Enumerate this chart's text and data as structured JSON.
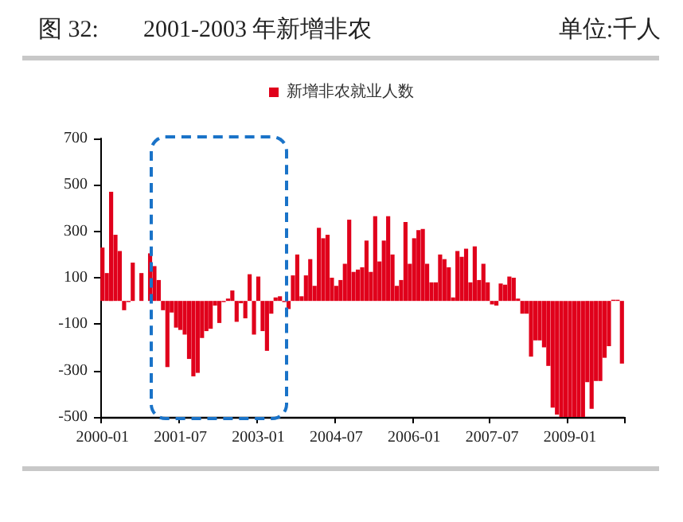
{
  "chart_data": {
    "type": "bar",
    "title": "2001-2003 年新增非农",
    "ylabel": "单位:千人",
    "annotations": [
      "图 32:"
    ],
    "categories": [
      "2000-01",
      null,
      null,
      null,
      null,
      null,
      null,
      null,
      null,
      null,
      null,
      null,
      null,
      null,
      null,
      null,
      null,
      null,
      "2001-07",
      null,
      null,
      null,
      null,
      null,
      null,
      null,
      null,
      null,
      null,
      null,
      null,
      null,
      null,
      null,
      null,
      null,
      "2003-01",
      null,
      null,
      null,
      null,
      null,
      null,
      null,
      null,
      null,
      null,
      null,
      null,
      null,
      null,
      null,
      null,
      null,
      "2004-07",
      null,
      null,
      null,
      null,
      null,
      null,
      null,
      null,
      null,
      null,
      null,
      null,
      null,
      null,
      null,
      null,
      null,
      "2006-01",
      null,
      null,
      null,
      null,
      null,
      null,
      null,
      null,
      null,
      null,
      null,
      null,
      null,
      null,
      null,
      null,
      null,
      "2007-07",
      null,
      null,
      null,
      null,
      null,
      null,
      null,
      null,
      null,
      null,
      null,
      null,
      null,
      null,
      null,
      null,
      null,
      "2009-01",
      null,
      null,
      null,
      null,
      null,
      null,
      null,
      null,
      null,
      null,
      null,
      null
    ],
    "series": [
      {
        "name": "新增非农就业人数",
        "color": "#e0001b",
        "values": [
          230,
          120,
          470,
          285,
          215,
          -40,
          -5,
          165,
          0,
          120,
          0,
          205,
          150,
          90,
          -40,
          -285,
          -50,
          -115,
          -125,
          -145,
          -250,
          -325,
          -310,
          -160,
          -130,
          -120,
          -20,
          -95,
          -5,
          10,
          45,
          -90,
          -10,
          -75,
          115,
          -145,
          105,
          -130,
          -215,
          -55,
          15,
          20,
          -5,
          -35,
          110,
          200,
          20,
          110,
          180,
          65,
          315,
          270,
          285,
          100,
          65,
          90,
          160,
          350,
          125,
          135,
          145,
          260,
          125,
          365,
          170,
          260,
          365,
          200,
          65,
          90,
          340,
          160,
          270,
          305,
          310,
          160,
          80,
          80,
          200,
          180,
          145,
          15,
          215,
          190,
          225,
          80,
          235,
          90,
          160,
          80,
          -15,
          -20,
          75,
          70,
          105,
          100,
          10,
          -55,
          -55,
          -240,
          -170,
          -170,
          -200,
          -280,
          -460,
          -490,
          -500,
          -500,
          -500,
          -500,
          -500,
          -500,
          -350,
          -465,
          -345,
          -345,
          -245,
          -195,
          5,
          5,
          -270
        ]
      }
    ],
    "ylim": [
      -500,
      700
    ],
    "yticks": [
      -500,
      -300,
      -100,
      100,
      300,
      500,
      700
    ],
    "grid": false,
    "legend": "top"
  }
}
